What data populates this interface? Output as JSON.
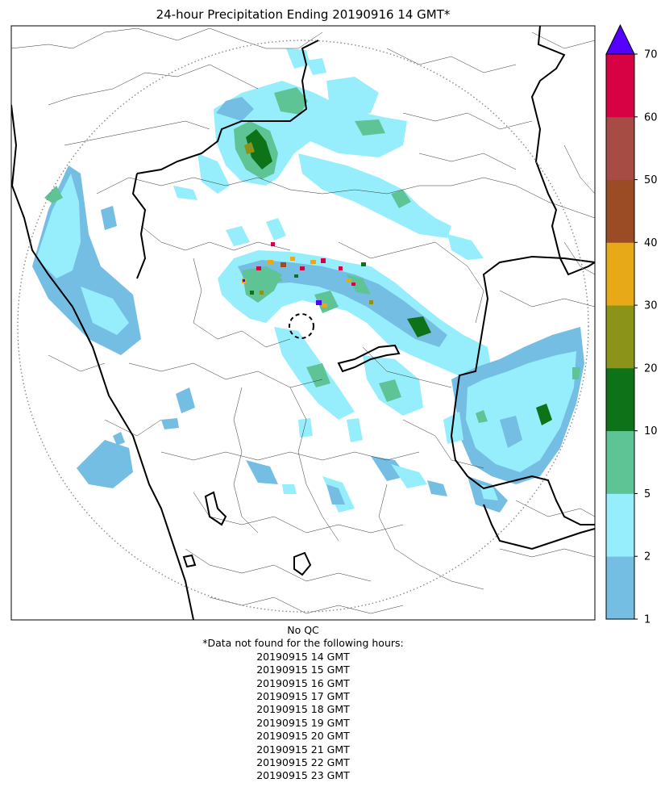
{
  "title": "24-hour Precipitation Ending 20190916 14 GMT*",
  "colorbar": {
    "ticks": [
      "1",
      "2",
      "5",
      "10",
      "20",
      "30",
      "40",
      "50",
      "60",
      "70"
    ],
    "colors": [
      "#74bde3",
      "#96eefc",
      "#5ec495",
      "#0e7218",
      "#8b9418",
      "#e8a918",
      "#9c4c24",
      "#a64c44",
      "#d60244"
    ],
    "extend_color": "#5500ff"
  },
  "footer": {
    "qc_note": "No QC",
    "missing_header": "*Data not found for the following hours:",
    "missing_hours": [
      "20190915 14 GMT",
      "20190915 15 GMT",
      "20190915 16 GMT",
      "20190915 17 GMT",
      "20190915 18 GMT",
      "20190915 19 GMT",
      "20190915 20 GMT",
      "20190915 21 GMT",
      "20190915 22 GMT",
      "20190915 23 GMT"
    ]
  }
}
